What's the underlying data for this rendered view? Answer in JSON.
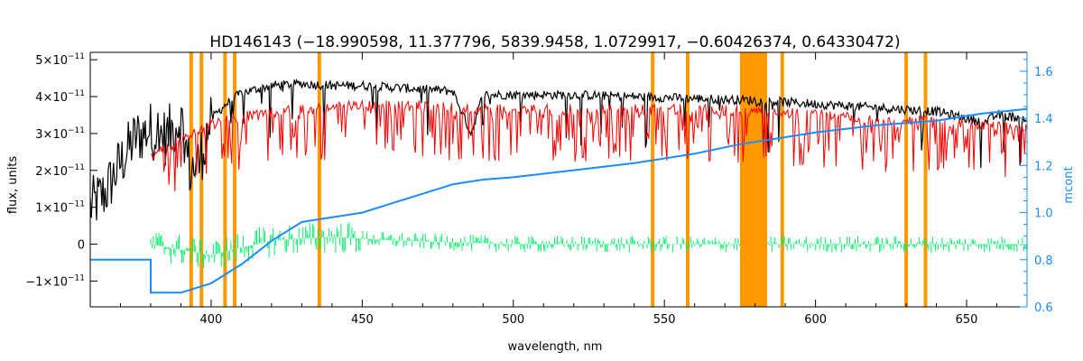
{
  "chart_data": {
    "type": "line",
    "title": "HD146143    (−18.990598, 11.377796, 5839.9458, 1.0729917, −0.60426374, 0.64330472)",
    "xlabel": "wavelength, nm",
    "ylabel": "flux, units",
    "y2label": "mcont",
    "xlim": [
      360,
      670
    ],
    "ylim": [
      -1.7e-11,
      5.2e-11
    ],
    "y2lim": [
      0.6,
      1.68
    ],
    "x_ticks": [
      400,
      450,
      500,
      550,
      600,
      650
    ],
    "x_tick_labels": [
      "400",
      "450",
      "500",
      "550",
      "600",
      "650"
    ],
    "y_ticks": [
      -1e-11,
      0,
      1e-11,
      2e-11,
      3e-11,
      4e-11,
      5e-11
    ],
    "y_tick_labels": [
      {
        "mant": "−1×10",
        "exp": "−11"
      },
      {
        "mant": "0",
        "exp": ""
      },
      {
        "mant": "1×10",
        "exp": "−11"
      },
      {
        "mant": "2×10",
        "exp": "−11"
      },
      {
        "mant": "3×10",
        "exp": "−11"
      },
      {
        "mant": "4×10",
        "exp": "−11"
      },
      {
        "mant": "5×10",
        "exp": "−11"
      }
    ],
    "y2_ticks": [
      0.6,
      0.8,
      1.0,
      1.2,
      1.4,
      1.6
    ],
    "y2_tick_labels": [
      "0.6",
      "0.8",
      "1.0",
      "1.2",
      "1.4",
      "1.6"
    ],
    "masked_lines_nm": [
      393.4,
      396.8,
      404.6,
      407.8,
      435.8,
      546.1,
      557.7,
      589.0,
      630.0,
      636.4
    ],
    "masked_band_nm": [
      575,
      584
    ],
    "series": [
      {
        "role": "observed",
        "color": "#000000",
        "points": [
          [
            360,
            1e-11
          ],
          [
            365,
            1.4e-11
          ],
          [
            370,
            2.2e-11
          ],
          [
            375,
            2.9e-11
          ],
          [
            380,
            3.1e-11
          ],
          [
            385,
            2.9e-11
          ],
          [
            390,
            3.4e-11
          ],
          [
            393,
            2e-11
          ],
          [
            396,
            2.2e-11
          ],
          [
            400,
            3.4e-11
          ],
          [
            405,
            3.8e-11
          ],
          [
            410,
            4.1e-11
          ],
          [
            420,
            4.3e-11
          ],
          [
            430,
            4.35e-11
          ],
          [
            440,
            4.3e-11
          ],
          [
            450,
            4.3e-11
          ],
          [
            460,
            4.25e-11
          ],
          [
            470,
            4.2e-11
          ],
          [
            480,
            4.15e-11
          ],
          [
            486,
            3e-11
          ],
          [
            490,
            4.05e-11
          ],
          [
            500,
            4.05e-11
          ],
          [
            520,
            4.05e-11
          ],
          [
            540,
            4e-11
          ],
          [
            560,
            3.95e-11
          ],
          [
            580,
            3.9e-11
          ],
          [
            600,
            3.8e-11
          ],
          [
            620,
            3.7e-11
          ],
          [
            640,
            3.6e-11
          ],
          [
            656,
            3.3e-11
          ],
          [
            660,
            3.5e-11
          ],
          [
            670,
            3.4e-11
          ]
        ]
      },
      {
        "role": "model",
        "color": "#ff0000",
        "points": [
          [
            380,
            2.5e-11
          ],
          [
            390,
            3e-11
          ],
          [
            400,
            3.4e-11
          ],
          [
            410,
            3.6e-11
          ],
          [
            420,
            3.7e-11
          ],
          [
            430,
            3.8e-11
          ],
          [
            440,
            3.85e-11
          ],
          [
            450,
            3.9e-11
          ],
          [
            460,
            3.9e-11
          ],
          [
            470,
            3.9e-11
          ],
          [
            480,
            3.85e-11
          ],
          [
            490,
            3.8e-11
          ],
          [
            500,
            3.8e-11
          ],
          [
            520,
            3.8e-11
          ],
          [
            540,
            3.8e-11
          ],
          [
            560,
            3.8e-11
          ],
          [
            580,
            3.75e-11
          ],
          [
            600,
            3.65e-11
          ],
          [
            620,
            3.55e-11
          ],
          [
            640,
            3.45e-11
          ],
          [
            660,
            3.35e-11
          ],
          [
            670,
            3.3e-11
          ]
        ]
      },
      {
        "role": "residual",
        "color": "#00ee66",
        "points": [
          [
            380,
            0.0
          ],
          [
            400,
            -3e-12
          ],
          [
            420,
            1e-12
          ],
          [
            440,
            2e-12
          ],
          [
            460,
            1e-12
          ],
          [
            500,
            0.0
          ],
          [
            550,
            0.0
          ],
          [
            600,
            0.0
          ],
          [
            650,
            0.0
          ],
          [
            670,
            0.0
          ]
        ]
      },
      {
        "role": "continuum",
        "color": "#1a8cff",
        "axis": "y2",
        "points": [
          [
            360,
            0.8
          ],
          [
            380,
            0.8
          ],
          [
            380,
            0.66
          ],
          [
            390,
            0.66
          ],
          [
            400,
            0.7
          ],
          [
            410,
            0.78
          ],
          [
            420,
            0.88
          ],
          [
            430,
            0.96
          ],
          [
            440,
            0.98
          ],
          [
            450,
            1.0
          ],
          [
            460,
            1.04
          ],
          [
            470,
            1.08
          ],
          [
            480,
            1.12
          ],
          [
            490,
            1.14
          ],
          [
            500,
            1.15
          ],
          [
            520,
            1.18
          ],
          [
            540,
            1.21
          ],
          [
            560,
            1.25
          ],
          [
            575,
            1.29
          ],
          [
            590,
            1.32
          ],
          [
            600,
            1.34
          ],
          [
            620,
            1.37
          ],
          [
            640,
            1.39
          ],
          [
            655,
            1.42
          ],
          [
            670,
            1.44
          ]
        ]
      }
    ],
    "colors": {
      "mask": "#ff9900",
      "axis2": "#1a8cff"
    }
  }
}
